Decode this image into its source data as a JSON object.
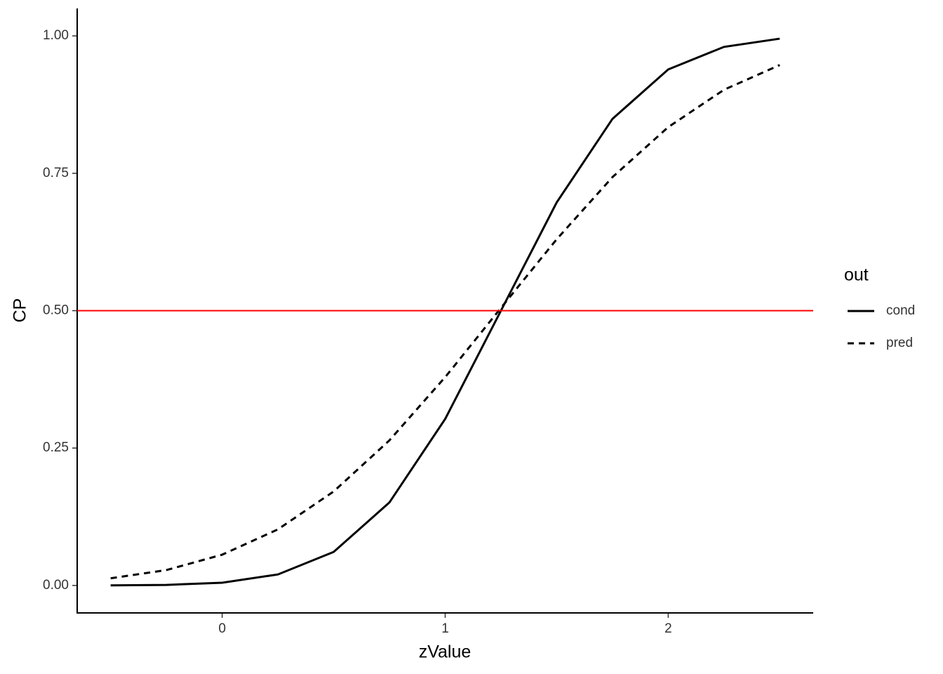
{
  "chart_data": {
    "type": "line",
    "x_label": "zValue",
    "y_label": "CP",
    "x": [
      -0.5,
      -0.25,
      0,
      0.25,
      0.5,
      0.75,
      1,
      1.25,
      1.5,
      1.75,
      2,
      2.25,
      2.5
    ],
    "series": [
      {
        "name": "cond",
        "color": "#000000",
        "dash": "solid",
        "values": [
          0.0002,
          0.001,
          0.005,
          0.02,
          0.061,
          0.151,
          0.303,
          0.5,
          0.697,
          0.849,
          0.939,
          0.98,
          0.995
        ]
      },
      {
        "name": "pred",
        "color": "#000000",
        "dash": "dashed",
        "values": [
          0.013,
          0.028,
          0.056,
          0.102,
          0.171,
          0.264,
          0.379,
          0.505,
          0.63,
          0.743,
          0.834,
          0.902,
          0.947
        ]
      }
    ],
    "hline": {
      "value": 0.5,
      "color": "#ff0000"
    },
    "legend_title": "out",
    "legend_position": "right",
    "xlim": [
      -0.65,
      2.65
    ],
    "xticks": [
      0,
      1,
      2
    ],
    "ylim": [
      -0.05,
      1.05
    ],
    "yticks": [
      {
        "value": 0,
        "label": "0.00"
      },
      {
        "value": 0.25,
        "label": "0.25"
      },
      {
        "value": 0.5,
        "label": "0.50"
      },
      {
        "value": 0.75,
        "label": "0.75"
      },
      {
        "value": 1,
        "label": "1.00"
      }
    ],
    "grid": false
  }
}
